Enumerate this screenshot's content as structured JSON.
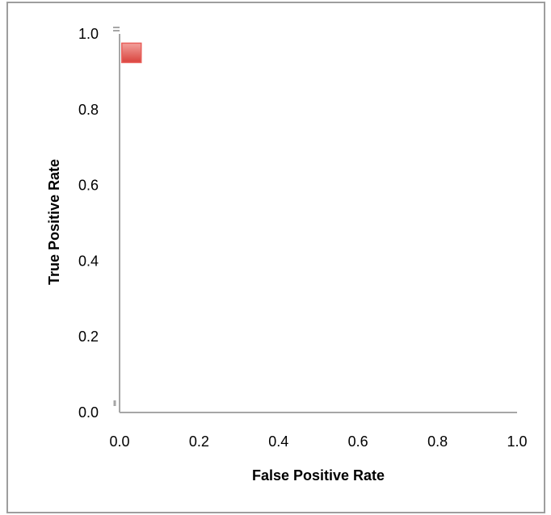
{
  "chart_data": {
    "type": "scatter",
    "title": "",
    "xlabel": "False Positive Rate",
    "ylabel": "True Positive Rate",
    "xlim": [
      0,
      1
    ],
    "ylim": [
      0,
      1
    ],
    "x_ticks": [
      "0.0",
      "0.2",
      "0.4",
      "0.6",
      "0.8",
      "1.0"
    ],
    "y_ticks": [
      "0.0",
      "0.2",
      "0.4",
      "0.6",
      "0.8",
      "1.0"
    ],
    "grid": false,
    "legend": "none",
    "series": [
      {
        "x": [
          0.03
        ],
        "y": [
          0.95
        ],
        "marker": "square",
        "color": "#e8605b"
      }
    ],
    "axis_color": "#a6a6a6"
  }
}
